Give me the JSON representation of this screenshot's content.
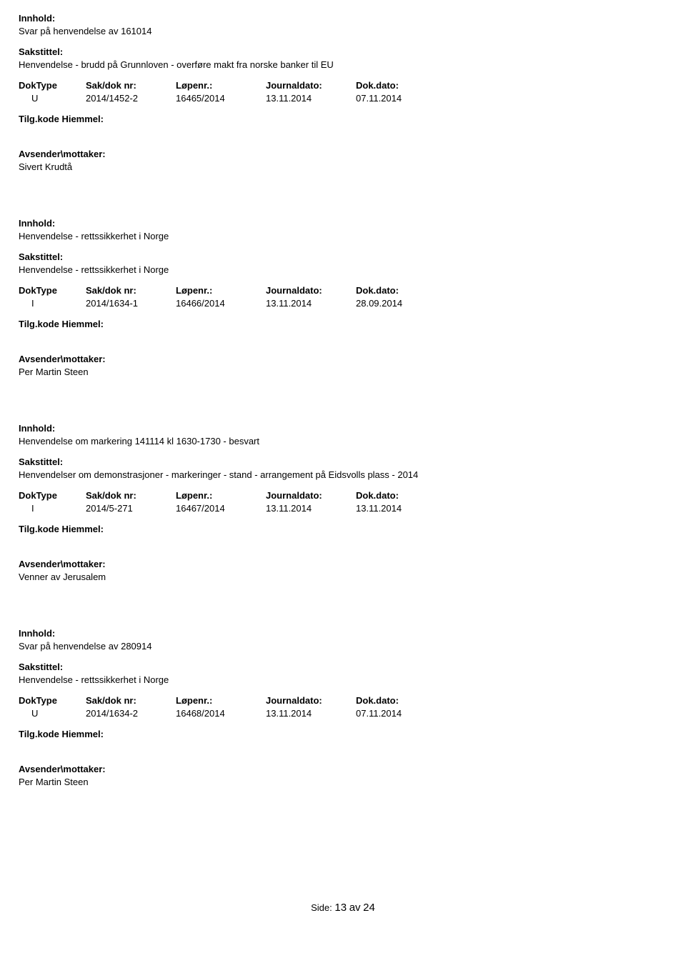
{
  "labels": {
    "innhold": "Innhold:",
    "sakstittel": "Sakstittel:",
    "doktype": "DokType",
    "sakdok": "Sak/dok nr:",
    "lopenr": "Løpenr.:",
    "journaldato": "Journaldato:",
    "dokdato": "Dok.dato:",
    "tilgkode": "Tilg.kode",
    "hjemmel": "Hiemmel:",
    "avsender": "Avsender\\mottaker:"
  },
  "entries": [
    {
      "content": "Svar på henvendelse av 161014",
      "title": "Henvendelse - brudd på Grunnloven - overføre makt fra norske banker til EU",
      "doktype": "U",
      "sakdok": "2014/1452-2",
      "lopenr": "16465/2014",
      "journaldato": "13.11.2014",
      "dokdato": "07.11.2014",
      "sender": "Sivert Krudtå"
    },
    {
      "content": "Henvendelse - rettssikkerhet i Norge",
      "title": "Henvendelse - rettssikkerhet i Norge",
      "doktype": "I",
      "sakdok": "2014/1634-1",
      "lopenr": "16466/2014",
      "journaldato": "13.11.2014",
      "dokdato": "28.09.2014",
      "sender": "Per Martin Steen"
    },
    {
      "content": "Henvendelse om markering 141114 kl 1630-1730 - besvart",
      "title": "Henvendelser om demonstrasjoner - markeringer - stand - arrangement på Eidsvolls plass - 2014",
      "doktype": "I",
      "sakdok": "2014/5-271",
      "lopenr": "16467/2014",
      "journaldato": "13.11.2014",
      "dokdato": "13.11.2014",
      "sender": "Venner av Jerusalem"
    },
    {
      "content": "Svar på henvendelse av 280914",
      "title": "Henvendelse - rettssikkerhet i Norge",
      "doktype": "U",
      "sakdok": "2014/1634-2",
      "lopenr": "16468/2014",
      "journaldato": "13.11.2014",
      "dokdato": "07.11.2014",
      "sender": "Per Martin Steen"
    }
  ],
  "footer": {
    "side": "Side:",
    "page": "13",
    "av": "av",
    "total": "24"
  }
}
